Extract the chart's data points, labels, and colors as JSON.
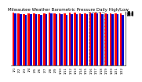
{
  "title": "Milwaukee Weather Barometric Pressure Daily High/Low",
  "bar_width": 0.4,
  "background_color": "#ffffff",
  "high_color": "#ff0000",
  "low_color": "#0000cc",
  "dates": [
    "1/1",
    "1/2",
    "1/3",
    "1/4",
    "1/5",
    "1/6",
    "1/7",
    "1/8",
    "1/9",
    "1/10",
    "1/11",
    "1/12",
    "1/13",
    "1/14",
    "1/15",
    "1/16",
    "1/17",
    "1/18",
    "1/19",
    "1/20",
    "1/21",
    "1/22"
  ],
  "highs": [
    30.28,
    30.12,
    29.55,
    30.05,
    30.18,
    29.72,
    30.08,
    30.45,
    30.15,
    30.1,
    29.82,
    30.22,
    30.32,
    30.18,
    30.05,
    30.55,
    30.6,
    30.28,
    30.08,
    29.98,
    29.85,
    29.92
  ],
  "lows": [
    29.85,
    29.72,
    29.1,
    29.4,
    29.68,
    29.28,
    29.55,
    29.8,
    29.62,
    29.42,
    29.2,
    29.55,
    29.72,
    29.6,
    29.3,
    29.9,
    30.05,
    29.72,
    29.5,
    29.42,
    29.3,
    29.18
  ],
  "ylim": [
    0,
    30.8
  ],
  "yticks": [
    29.0,
    29.2,
    29.4,
    29.6,
    29.8,
    30.0,
    30.2,
    30.4,
    30.6,
    30.8
  ],
  "highlight_indices": [
    15,
    16,
    17
  ],
  "title_fontsize": 4,
  "tick_fontsize": 3,
  "ylabel_fontsize": 3
}
